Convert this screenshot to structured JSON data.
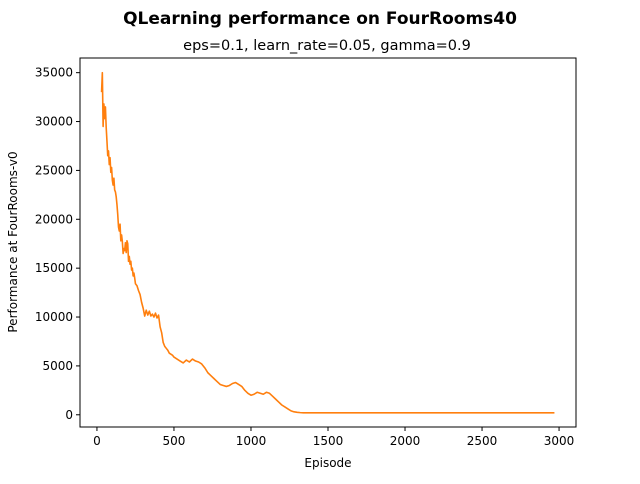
{
  "chart_data": {
    "type": "line",
    "title": "QLearning performance on FourRooms40",
    "subtitle": "eps=0.1, learn_rate=0.05, gamma=0.9",
    "xlabel": "Episode",
    "ylabel": "Performance at FourRooms-v0",
    "xlim": [
      -110,
      3110
    ],
    "ylim": [
      -1250,
      36500
    ],
    "xticks": [
      0,
      500,
      1000,
      1500,
      2000,
      2500,
      3000
    ],
    "yticks": [
      0,
      5000,
      10000,
      15000,
      20000,
      25000,
      30000,
      35000
    ],
    "grid": false,
    "legend": "none",
    "series": [
      {
        "color": "#ff7f0e",
        "x": [
          30,
          35,
          40,
          45,
          50,
          55,
          60,
          65,
          70,
          75,
          80,
          85,
          90,
          95,
          100,
          105,
          110,
          115,
          120,
          125,
          130,
          135,
          140,
          145,
          150,
          155,
          160,
          165,
          170,
          175,
          180,
          185,
          190,
          195,
          200,
          205,
          210,
          215,
          220,
          225,
          230,
          235,
          240,
          245,
          250,
          260,
          270,
          280,
          290,
          300,
          310,
          320,
          330,
          340,
          350,
          360,
          370,
          380,
          390,
          400,
          410,
          420,
          430,
          440,
          450,
          460,
          470,
          480,
          490,
          500,
          520,
          540,
          560,
          580,
          600,
          620,
          640,
          660,
          680,
          700,
          720,
          740,
          760,
          780,
          800,
          820,
          840,
          860,
          880,
          900,
          920,
          940,
          960,
          980,
          1000,
          1020,
          1040,
          1060,
          1080,
          1100,
          1120,
          1140,
          1160,
          1180,
          1200,
          1220,
          1240,
          1260,
          1280,
          1300,
          1320,
          1340,
          1360,
          1400,
          1500,
          1750,
          2000,
          2250,
          2500,
          2750,
          2970
        ],
        "values": [
          33000,
          35000,
          29500,
          31800,
          30300,
          31500,
          29400,
          28000,
          26500,
          27000,
          25600,
          26300,
          24800,
          25300,
          24000,
          23500,
          24200,
          23000,
          22800,
          22300,
          21500,
          20500,
          19200,
          18800,
          19500,
          17800,
          18400,
          17700,
          16500,
          17000,
          16800,
          17600,
          16600,
          17800,
          17500,
          15700,
          16200,
          15400,
          15700,
          14800,
          15000,
          14200,
          14500,
          14000,
          13400,
          13200,
          12700,
          12300,
          11500,
          10900,
          10100,
          10700,
          10200,
          10600,
          10100,
          10300,
          10000,
          10400,
          9900,
          10200,
          9000,
          8400,
          7400,
          7000,
          6800,
          6600,
          6300,
          6200,
          6100,
          5900,
          5700,
          5500,
          5300,
          5600,
          5400,
          5700,
          5500,
          5400,
          5200,
          4800,
          4300,
          4000,
          3700,
          3400,
          3100,
          3000,
          2900,
          3000,
          3200,
          3300,
          3100,
          2900,
          2500,
          2200,
          2000,
          2100,
          2300,
          2200,
          2100,
          2300,
          2200,
          1900,
          1600,
          1300,
          1000,
          800,
          600,
          400,
          300,
          250,
          220,
          200,
          200,
          200,
          200,
          200,
          200,
          200,
          200,
          200,
          200
        ]
      }
    ]
  }
}
